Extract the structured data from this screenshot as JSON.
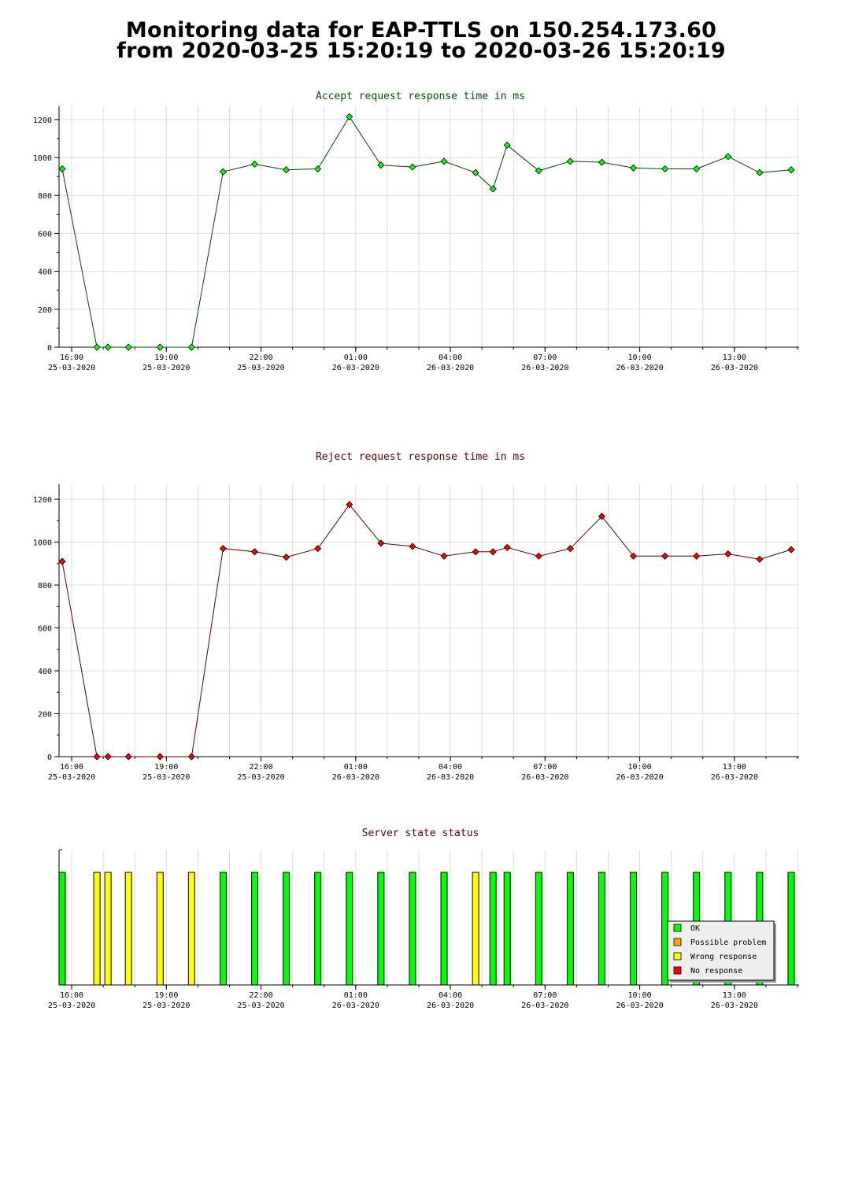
{
  "title": {
    "line1": "Monitoring data for EAP-TTLS on 150.254.173.60",
    "line2": "from 2020-03-25 15:20:19 to 2020-03-26 15:20:19"
  },
  "colors": {
    "accept_line": "#004400",
    "accept_marker": "#00ff00",
    "accept_title": "#005500",
    "reject_line": "#550000",
    "reject_marker": "#ff0000",
    "reject_title": "#550000",
    "status_title": "#550000",
    "status_ok": "#00ff00",
    "status_possible_problem": "#ffa500",
    "status_wrong_response": "#ffff00",
    "status_no_response": "#ff0000",
    "grid": "#dddddd"
  },
  "x_axis": {
    "start_hour": 15.6,
    "end_hour": 39.05,
    "ticks": [
      {
        "hour": 16,
        "time": "16:00",
        "date": "25-03-2020"
      },
      {
        "hour": 19,
        "time": "19:00",
        "date": "25-03-2020"
      },
      {
        "hour": 22,
        "time": "22:00",
        "date": "25-03-2020"
      },
      {
        "hour": 25,
        "time": "01:00",
        "date": "26-03-2020"
      },
      {
        "hour": 28,
        "time": "04:00",
        "date": "26-03-2020"
      },
      {
        "hour": 31,
        "time": "07:00",
        "date": "26-03-2020"
      },
      {
        "hour": 34,
        "time": "10:00",
        "date": "26-03-2020"
      },
      {
        "hour": 37,
        "time": "13:00",
        "date": "26-03-2020"
      }
    ]
  },
  "chart_data": [
    {
      "type": "line",
      "title": "Accept request response time in ms",
      "ylim": [
        0,
        1270
      ],
      "yticks": [
        0,
        200,
        400,
        600,
        800,
        1000,
        1200
      ],
      "grid": true,
      "series": [
        {
          "x": [
            15.7,
            16.8,
            17.15,
            17.8,
            18.8,
            19.8,
            20.8,
            21.8,
            22.8,
            23.8,
            24.8,
            25.8,
            26.8,
            27.8,
            28.8,
            29.35,
            29.8,
            30.8,
            31.8,
            32.8,
            33.8,
            34.8,
            35.8,
            36.8,
            37.8,
            38.8
          ],
          "y": [
            940,
            0,
            0,
            0,
            0,
            0,
            925,
            965,
            935,
            940,
            1215,
            960,
            950,
            980,
            920,
            835,
            1065,
            930,
            980,
            975,
            945,
            940,
            940,
            1005,
            920,
            935
          ]
        }
      ]
    },
    {
      "type": "line",
      "title": "Reject request response time in ms",
      "ylim": [
        0,
        1270
      ],
      "yticks": [
        0,
        200,
        400,
        600,
        800,
        1000,
        1200
      ],
      "grid": true,
      "series": [
        {
          "x": [
            15.7,
            16.8,
            17.15,
            17.8,
            18.8,
            19.8,
            20.8,
            21.8,
            22.8,
            23.8,
            24.8,
            25.8,
            26.8,
            27.8,
            28.8,
            29.35,
            29.8,
            30.8,
            31.8,
            32.8,
            33.8,
            34.8,
            35.8,
            36.8,
            37.8,
            38.8
          ],
          "y": [
            910,
            0,
            0,
            0,
            0,
            0,
            970,
            955,
            930,
            970,
            1175,
            995,
            980,
            935,
            955,
            955,
            975,
            935,
            970,
            1120,
            935,
            935,
            935,
            945,
            920,
            965
          ]
        }
      ]
    },
    {
      "type": "bar",
      "title": "Server state status",
      "legend_position": "bottom-right",
      "legend": [
        {
          "key": "ok",
          "label": "OK"
        },
        {
          "key": "possible_problem",
          "label": "Possible problem"
        },
        {
          "key": "wrong_response",
          "label": "Wrong response"
        },
        {
          "key": "no_response",
          "label": "No response"
        }
      ],
      "x": [
        15.7,
        16.8,
        17.15,
        17.8,
        18.8,
        19.8,
        20.8,
        21.8,
        22.8,
        23.8,
        24.8,
        25.8,
        26.8,
        27.8,
        28.8,
        29.35,
        29.8,
        30.8,
        31.8,
        32.8,
        33.8,
        34.8,
        35.8,
        36.8,
        37.8,
        38.8
      ],
      "status": [
        "ok",
        "wrong_response",
        "wrong_response",
        "wrong_response",
        "wrong_response",
        "wrong_response",
        "ok",
        "ok",
        "ok",
        "ok",
        "ok",
        "ok",
        "ok",
        "ok",
        "wrong_response",
        "ok",
        "ok",
        "ok",
        "ok",
        "ok",
        "ok",
        "ok",
        "ok",
        "ok",
        "ok",
        "ok"
      ]
    }
  ]
}
